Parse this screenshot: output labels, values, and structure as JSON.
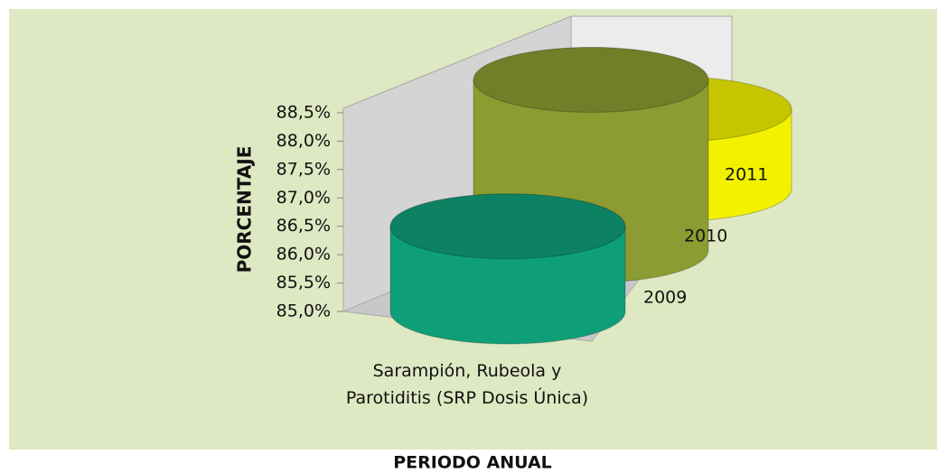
{
  "chart_data": {
    "type": "cylinder3d",
    "y_label": "PORCENTAJE",
    "x_label": "PERIODO ANUAL",
    "categories": [
      "Sarampión, Rubeola y Parotiditis (SRP Dosis Única)"
    ],
    "series": [
      {
        "name": "2009",
        "color": "#0f9f78",
        "values": [
          86.5
        ]
      },
      {
        "name": "2010",
        "color": "#8c9c32",
        "values": [
          88.0
        ]
      },
      {
        "name": "2011",
        "color": "#f2f200",
        "values": [
          86.4
        ]
      }
    ],
    "ylim": [
      85,
      88.5
    ],
    "yticks": [
      {
        "value": 85,
        "label": "85,0%"
      },
      {
        "value": 85.5,
        "label": "85,5%"
      },
      {
        "value": 86,
        "label": "86,0%"
      },
      {
        "value": 86.5,
        "label": "86,5%"
      },
      {
        "value": 87,
        "label": "87,0%"
      },
      {
        "value": 87.5,
        "label": "87,5%"
      },
      {
        "value": 88,
        "label": "88,0%"
      },
      {
        "value": 88.5,
        "label": "88,5%"
      }
    ]
  }
}
